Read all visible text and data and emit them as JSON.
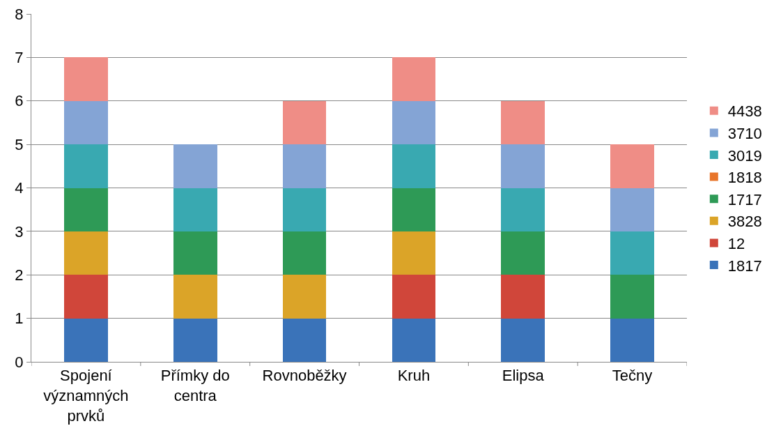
{
  "chart_data": {
    "type": "bar",
    "stacked": true,
    "categories": [
      "Spojení významných prvků",
      "Přímky do centra",
      "Rovnoběžky",
      "Kruh",
      "Elipsa",
      "Tečny"
    ],
    "series": [
      {
        "name": "1817",
        "color": "#3a73b9",
        "values": [
          1,
          1,
          1,
          1,
          1,
          1
        ]
      },
      {
        "name": "12",
        "color": "#d0463a",
        "values": [
          1,
          0,
          0,
          1,
          1,
          0
        ]
      },
      {
        "name": "3828",
        "color": "#dba428",
        "values": [
          1,
          1,
          1,
          1,
          0,
          0
        ]
      },
      {
        "name": "1717",
        "color": "#2e9a56",
        "values": [
          1,
          1,
          1,
          1,
          1,
          1
        ]
      },
      {
        "name": "1818",
        "color": "#e8752a",
        "values": [
          0,
          0,
          0,
          0,
          0,
          0
        ]
      },
      {
        "name": "3019",
        "color": "#39a9b1",
        "values": [
          1,
          1,
          1,
          1,
          1,
          1
        ]
      },
      {
        "name": "3710",
        "color": "#84a4d5",
        "values": [
          1,
          1,
          1,
          1,
          1,
          1
        ]
      },
      {
        "name": "4438",
        "color": "#ef8d86",
        "values": [
          1,
          0,
          1,
          1,
          1,
          1
        ]
      }
    ],
    "ylim": [
      0,
      8
    ],
    "yticks": [
      0,
      1,
      2,
      3,
      4,
      5,
      6,
      7,
      8
    ],
    "grid": "y",
    "legend": "right"
  }
}
